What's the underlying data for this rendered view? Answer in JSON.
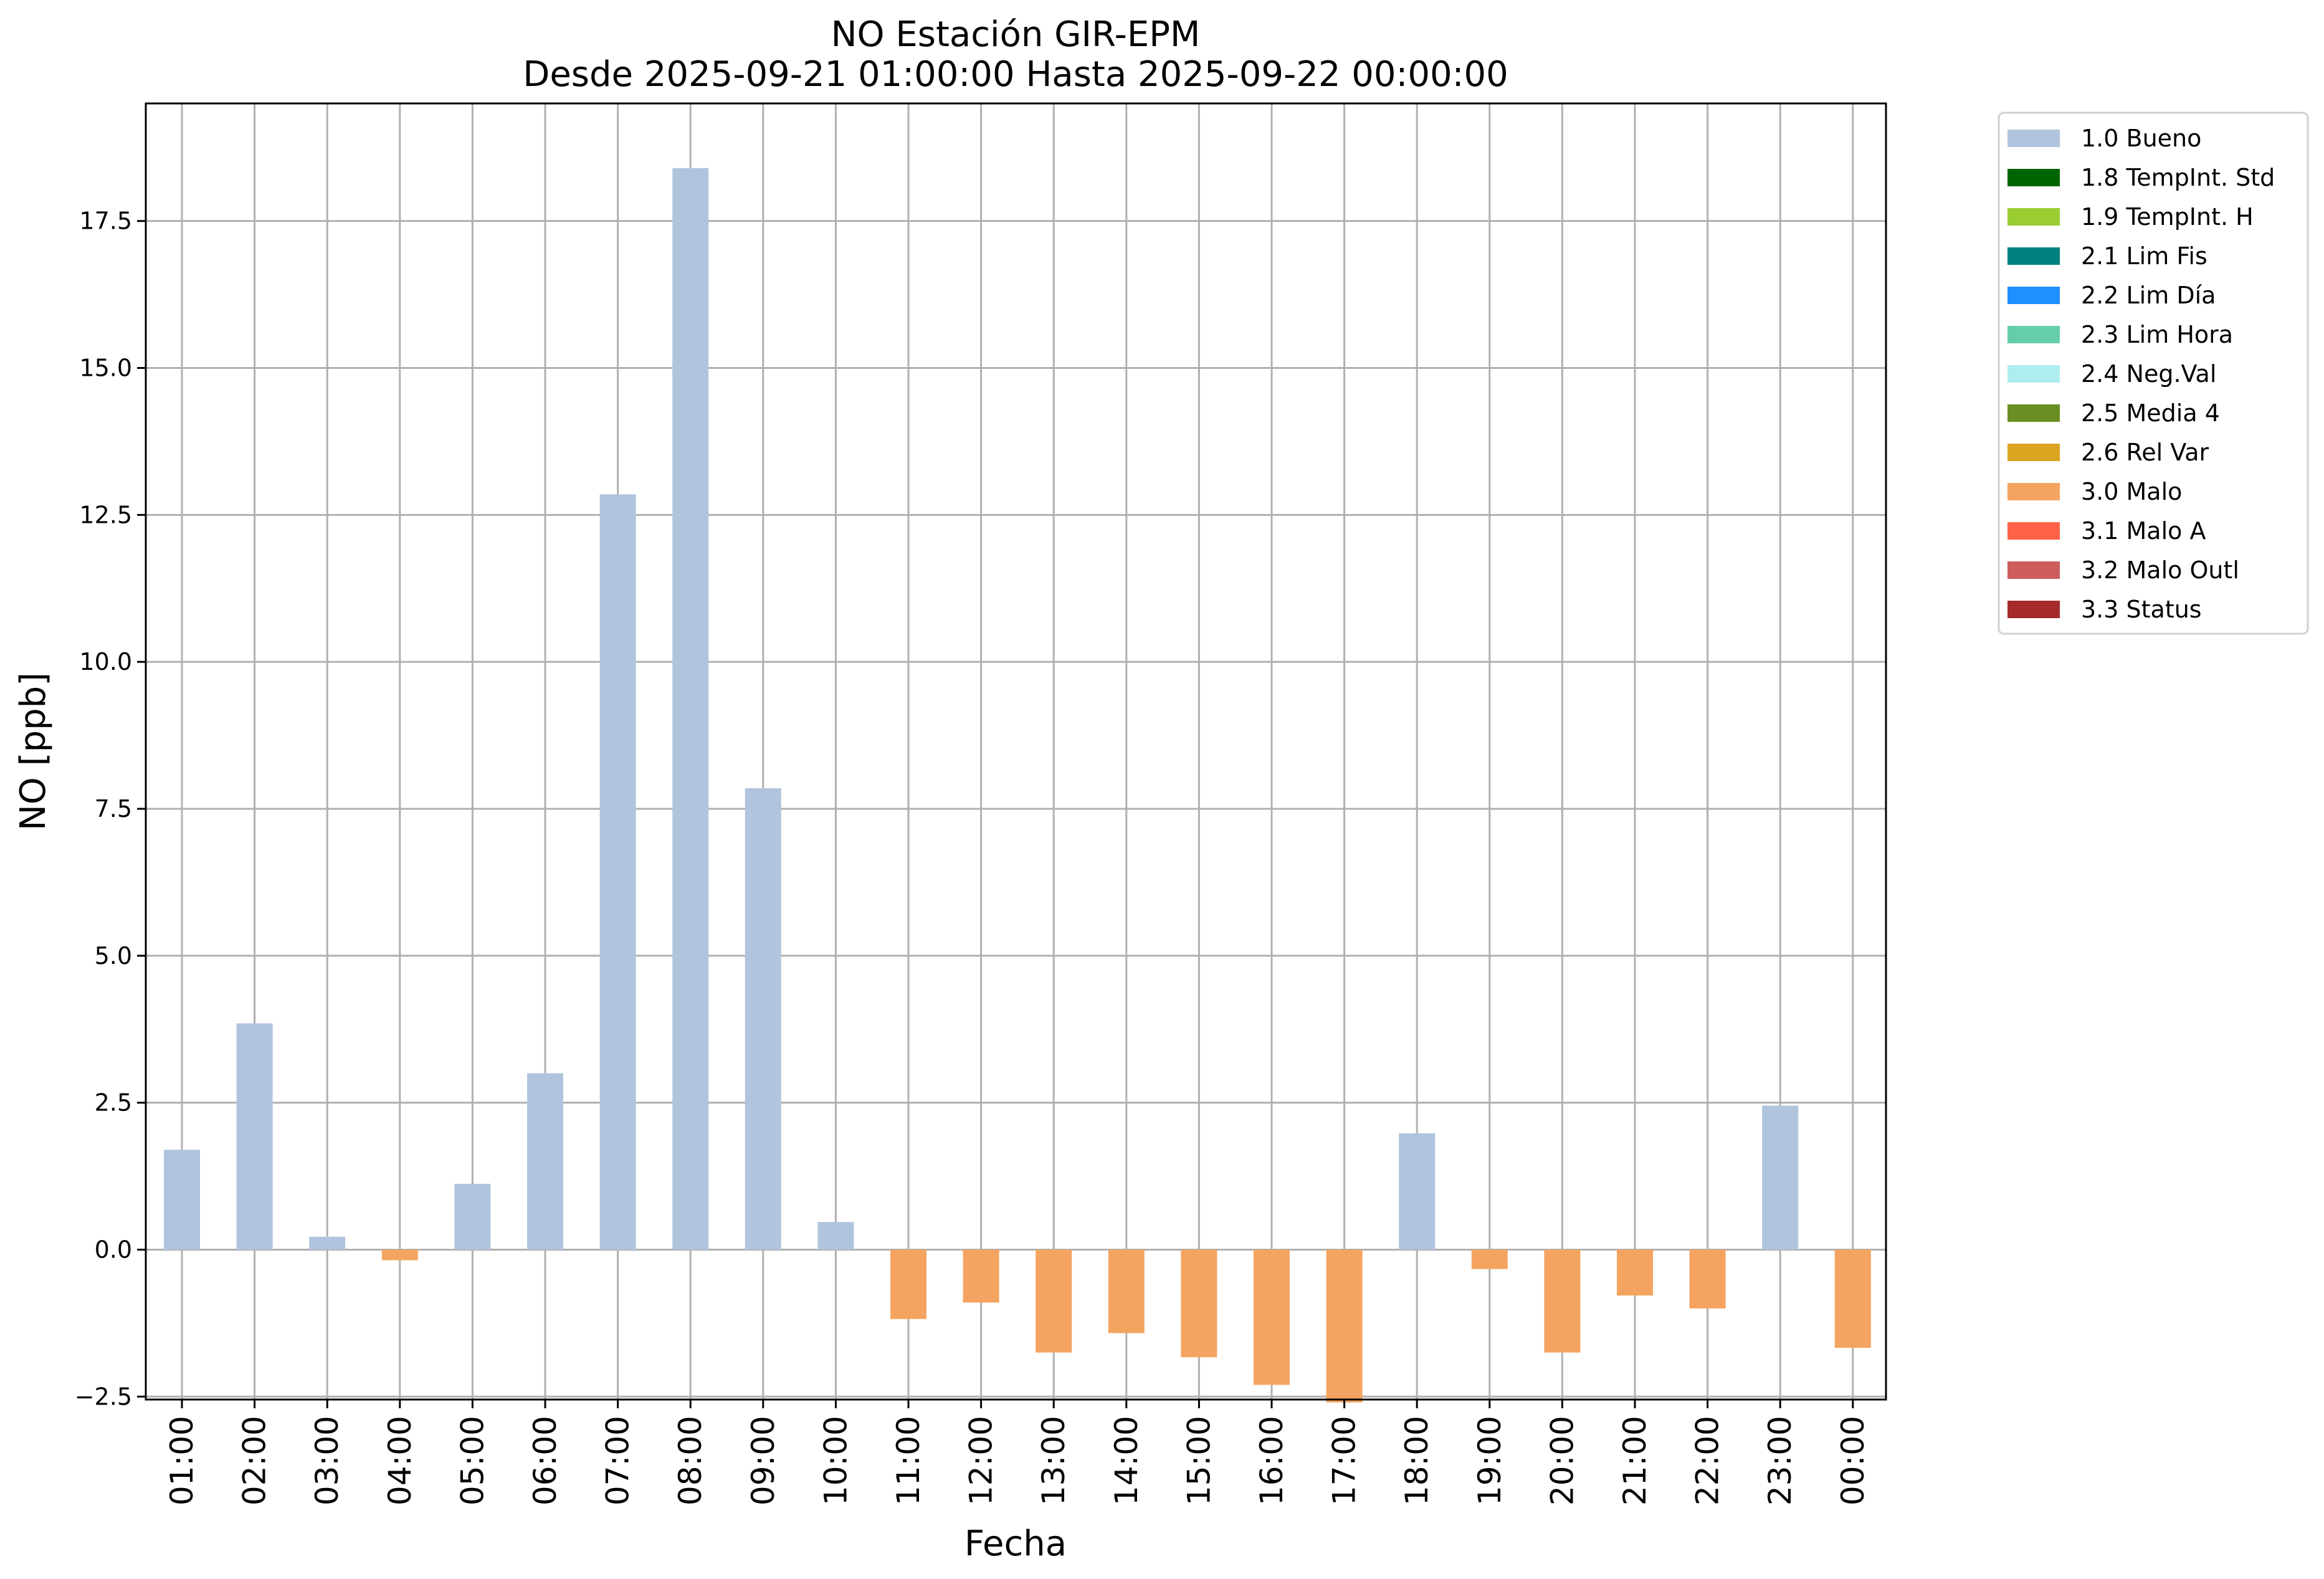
{
  "chart_data": {
    "type": "bar",
    "title": "NO Estación GIR-EPM",
    "subtitle": "Desde 2025-09-21 01:00:00 Hasta 2025-09-22 00:00:00",
    "xlabel": "Fecha",
    "ylabel": "NO [ppb]",
    "ylim": [
      -2.55,
      19.5
    ],
    "yticks": [
      "−2.5",
      "0.0",
      "2.5",
      "5.0",
      "7.5",
      "10.0",
      "12.5",
      "15.0",
      "17.5"
    ],
    "ytick_values": [
      -2.5,
      0,
      2.5,
      5,
      7.5,
      10,
      12.5,
      15,
      17.5
    ],
    "grid": true,
    "legend_position": "outside-right",
    "categories": [
      "01:00",
      "02:00",
      "03:00",
      "04:00",
      "05:00",
      "06:00",
      "07:00",
      "08:00",
      "09:00",
      "10:00",
      "11:00",
      "12:00",
      "13:00",
      "14:00",
      "15:00",
      "16:00",
      "17:00",
      "18:00",
      "19:00",
      "20:00",
      "21:00",
      "22:00",
      "23:00",
      "00:00"
    ],
    "values": [
      1.7,
      3.85,
      0.22,
      -0.18,
      1.12,
      3.0,
      12.85,
      18.4,
      7.85,
      0.47,
      -1.18,
      -0.9,
      -1.75,
      -1.42,
      -1.83,
      -2.3,
      -2.6,
      1.98,
      -0.33,
      -1.75,
      -0.78,
      -1.0,
      2.45,
      -1.67
    ],
    "flags": [
      "1.0 Bueno",
      "1.0 Bueno",
      "1.0 Bueno",
      "3.0 Malo",
      "1.0 Bueno",
      "1.0 Bueno",
      "1.0 Bueno",
      "1.0 Bueno",
      "1.0 Bueno",
      "1.0 Bueno",
      "3.0 Malo",
      "3.0 Malo",
      "3.0 Malo",
      "3.0 Malo",
      "3.0 Malo",
      "3.0 Malo",
      "3.0 Malo",
      "1.0 Bueno",
      "3.0 Malo",
      "3.0 Malo",
      "3.0 Malo",
      "3.0 Malo",
      "1.0 Bueno",
      "3.0 Malo"
    ],
    "legend": [
      {
        "label": "1.0 Bueno",
        "color": "#b0c4de"
      },
      {
        "label": "1.8 TempInt. Std",
        "color": "#006400"
      },
      {
        "label": "1.9 TempInt. H",
        "color": "#9acd32"
      },
      {
        "label": "2.1 Lim Fis",
        "color": "#008080"
      },
      {
        "label": "2.2 Lim Día",
        "color": "#1e90ff"
      },
      {
        "label": "2.3 Lim Hora",
        "color": "#66cdaa"
      },
      {
        "label": "2.4 Neg.Val",
        "color": "#afeeee"
      },
      {
        "label": "2.5 Media 4",
        "color": "#6b8e23"
      },
      {
        "label": "2.6 Rel Var",
        "color": "#daa520"
      },
      {
        "label": "3.0 Malo",
        "color": "#f4a460"
      },
      {
        "label": "3.1 Malo A",
        "color": "#ff6347"
      },
      {
        "label": "3.2 Malo Outl",
        "color": "#cd5c5c"
      },
      {
        "label": "3.3 Status",
        "color": "#a52a2a"
      }
    ]
  }
}
